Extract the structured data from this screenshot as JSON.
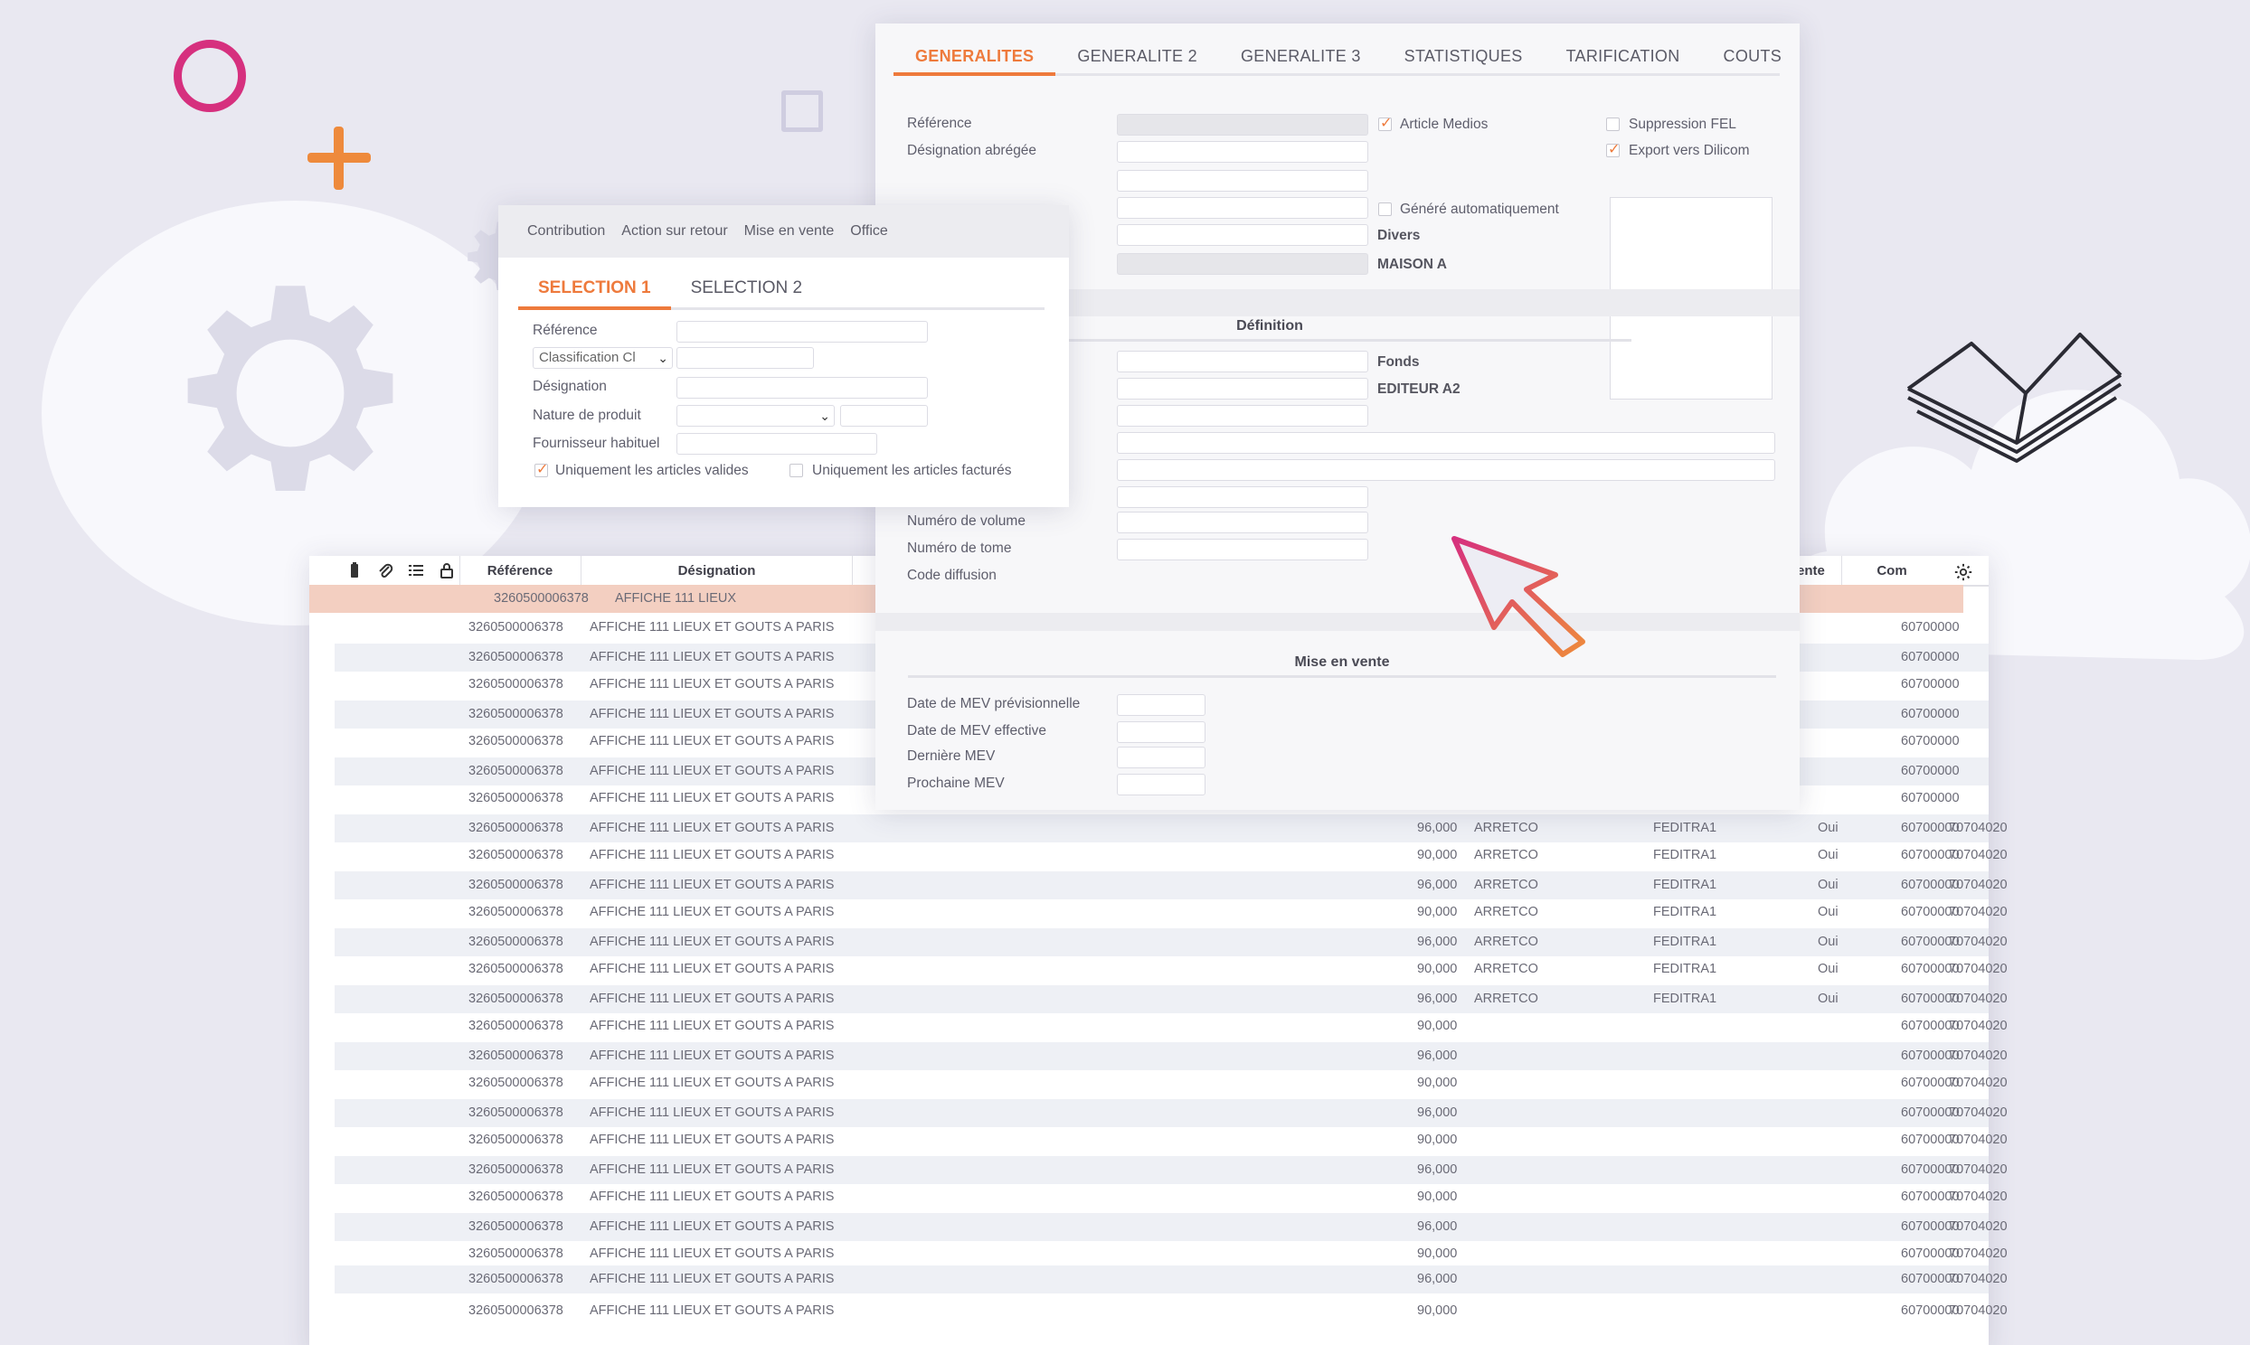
{
  "right_panel": {
    "tabs": [
      "GENERALITES",
      "GENERALITE 2",
      "GENERALITE 3",
      "STATISTIQUES",
      "TARIFICATION",
      "COUTS"
    ],
    "active_tab": "GENERALITES",
    "labels": {
      "reference": "Référence",
      "designation_abregee": "Désignation abrégée",
      "article_medios": "Article Medios",
      "suppression_fel": "Suppression FEL",
      "export_dilicom": "Export vers Dilicom",
      "genere_auto": "Généré automatiquement",
      "divers": "Divers",
      "maison": "MAISON A",
      "definition": "Définition",
      "fonds": "Fonds",
      "editeur": "EDITEUR A2",
      "numero_volume": "Numéro de volume",
      "numero_tome": "Numéro de tome",
      "code_diffusion": "Code diffusion",
      "mise_en_vente": "Mise en vente",
      "date_mev_prev": "Date de MEV prévisionnelle",
      "date_mev_eff": "Date de MEV effective",
      "derniere_mev": "Dernière MEV",
      "prochaine_mev": "Prochaine MEV"
    }
  },
  "selection_panel": {
    "menu": [
      "Contribution",
      "Action sur retour",
      "Mise en vente",
      "Office"
    ],
    "tabs": [
      "SELECTION 1",
      "SELECTION 2"
    ],
    "labels": {
      "reference": "Référence",
      "classification": "Classification Cl",
      "designation": "Désignation",
      "nature": "Nature de produit",
      "fournisseur": "Fournisseur habituel",
      "valides": "Uniquement les articles valides",
      "factures": "Uniquement les articles facturés"
    }
  },
  "table": {
    "headers": {
      "reference": "Référence",
      "designation": "Désignation",
      "vente": "e vente",
      "com": "Com"
    },
    "rows": [
      {
        "ref": "3260500006378",
        "des": "AFFICHE 111 LIEUX",
        "qty": "",
        "c1": "",
        "c2": "",
        "c3": "",
        "c4": "",
        "com": ""
      },
      {
        "ref": "3260500006378",
        "des": "AFFICHE 111 LIEUX ET GOUTS A PARIS",
        "qty": "",
        "c1": "",
        "c2": "",
        "c3": "",
        "c4": "",
        "com": "60700000"
      },
      {
        "ref": "3260500006378",
        "des": "AFFICHE 111 LIEUX ET GOUTS A PARIS",
        "qty": "",
        "c1": "",
        "c2": "",
        "c3": "",
        "c4": "",
        "com": "60700000"
      },
      {
        "ref": "3260500006378",
        "des": "AFFICHE 111 LIEUX ET GOUTS A PARIS",
        "qty": "",
        "c1": "",
        "c2": "",
        "c3": "",
        "c4": "",
        "com": "60700000"
      },
      {
        "ref": "3260500006378",
        "des": "AFFICHE 111 LIEUX ET GOUTS A PARIS",
        "qty": "",
        "c1": "",
        "c2": "",
        "c3": "",
        "c4": "",
        "com": "60700000"
      },
      {
        "ref": "3260500006378",
        "des": "AFFICHE 111 LIEUX ET GOUTS A PARIS",
        "qty": "",
        "c1": "",
        "c2": "",
        "c3": "",
        "c4": "",
        "com": "60700000"
      },
      {
        "ref": "3260500006378",
        "des": "AFFICHE 111 LIEUX ET GOUTS A PARIS",
        "qty": "",
        "c1": "",
        "c2": "",
        "c3": "",
        "c4": "",
        "com": "60700000"
      },
      {
        "ref": "3260500006378",
        "des": "AFFICHE 111 LIEUX ET GOUTS A PARIS",
        "qty": "",
        "c1": "",
        "c2": "",
        "c3": "",
        "c4": "",
        "com": "60700000"
      },
      {
        "ref": "3260500006378",
        "des": "AFFICHE 111 LIEUX ET GOUTS A PARIS",
        "qty": "96,000",
        "c1": "ARRETCO",
        "c2": "FEDITRA1",
        "c3": "Oui",
        "c4": "70704020",
        "com": "60700000"
      },
      {
        "ref": "3260500006378",
        "des": "AFFICHE 111 LIEUX ET GOUTS A PARIS",
        "qty": "90,000",
        "c1": "ARRETCO",
        "c2": "FEDITRA1",
        "c3": "Oui",
        "c4": "70704020",
        "com": "60700000"
      },
      {
        "ref": "3260500006378",
        "des": "AFFICHE 111 LIEUX ET GOUTS A PARIS",
        "qty": "96,000",
        "c1": "ARRETCO",
        "c2": "FEDITRA1",
        "c3": "Oui",
        "c4": "70704020",
        "com": "60700000"
      },
      {
        "ref": "3260500006378",
        "des": "AFFICHE 111 LIEUX ET GOUTS A PARIS",
        "qty": "90,000",
        "c1": "ARRETCO",
        "c2": "FEDITRA1",
        "c3": "Oui",
        "c4": "70704020",
        "com": "60700000"
      },
      {
        "ref": "3260500006378",
        "des": "AFFICHE 111 LIEUX ET GOUTS A PARIS",
        "qty": "96,000",
        "c1": "ARRETCO",
        "c2": "FEDITRA1",
        "c3": "Oui",
        "c4": "70704020",
        "com": "60700000"
      },
      {
        "ref": "3260500006378",
        "des": "AFFICHE 111 LIEUX ET GOUTS A PARIS",
        "qty": "90,000",
        "c1": "ARRETCO",
        "c2": "FEDITRA1",
        "c3": "Oui",
        "c4": "70704020",
        "com": "60700000"
      },
      {
        "ref": "3260500006378",
        "des": "AFFICHE 111 LIEUX ET GOUTS A PARIS",
        "qty": "96,000",
        "c1": "ARRETCO",
        "c2": "FEDITRA1",
        "c3": "Oui",
        "c4": "70704020",
        "com": "60700000"
      },
      {
        "ref": "3260500006378",
        "des": "AFFICHE 111 LIEUX ET GOUTS A PARIS",
        "qty": "90,000",
        "c1": "",
        "c2": "",
        "c3": "",
        "c4": "70704020",
        "com": "60700000"
      },
      {
        "ref": "3260500006378",
        "des": "AFFICHE 111 LIEUX ET GOUTS A PARIS",
        "qty": "96,000",
        "c1": "",
        "c2": "",
        "c3": "",
        "c4": "70704020",
        "com": "60700000"
      },
      {
        "ref": "3260500006378",
        "des": "AFFICHE 111 LIEUX ET GOUTS A PARIS",
        "qty": "90,000",
        "c1": "",
        "c2": "",
        "c3": "",
        "c4": "70704020",
        "com": "60700000"
      },
      {
        "ref": "3260500006378",
        "des": "AFFICHE 111 LIEUX ET GOUTS A PARIS",
        "qty": "96,000",
        "c1": "",
        "c2": "",
        "c3": "",
        "c4": "70704020",
        "com": "60700000"
      },
      {
        "ref": "3260500006378",
        "des": "AFFICHE 111 LIEUX ET GOUTS A PARIS",
        "qty": "90,000",
        "c1": "",
        "c2": "",
        "c3": "",
        "c4": "70704020",
        "com": "60700000"
      },
      {
        "ref": "3260500006378",
        "des": "AFFICHE 111 LIEUX ET GOUTS A PARIS",
        "qty": "96,000",
        "c1": "",
        "c2": "",
        "c3": "",
        "c4": "70704020",
        "com": "60700000"
      },
      {
        "ref": "3260500006378",
        "des": "AFFICHE 111 LIEUX ET GOUTS A PARIS",
        "qty": "90,000",
        "c1": "",
        "c2": "",
        "c3": "",
        "c4": "70704020",
        "com": "60700000"
      },
      {
        "ref": "3260500006378",
        "des": "AFFICHE 111 LIEUX ET GOUTS A PARIS",
        "qty": "96,000",
        "c1": "",
        "c2": "",
        "c3": "",
        "c4": "70704020",
        "com": "60700000"
      },
      {
        "ref": "3260500006378",
        "des": "AFFICHE 111 LIEUX ET GOUTS A PARIS",
        "qty": "90,000",
        "c1": "",
        "c2": "",
        "c3": "",
        "c4": "70704020",
        "com": "60700000"
      },
      {
        "ref": "3260500006378",
        "des": "AFFICHE 111 LIEUX ET GOUTS A PARIS",
        "qty": "96,000",
        "c1": "",
        "c2": "",
        "c3": "",
        "c4": "70704020",
        "com": "60700000"
      },
      {
        "ref": "3260500006378",
        "des": "AFFICHE 111 LIEUX ET GOUTS A PARIS",
        "qty": "90,000",
        "c1": "",
        "c2": "",
        "c3": "",
        "c4": "70704020",
        "com": "60700000"
      }
    ]
  },
  "colors": {
    "accent": "#ee7a3c",
    "highlight_row": "#f3cfc1",
    "alt_row": "#eef0f5"
  }
}
